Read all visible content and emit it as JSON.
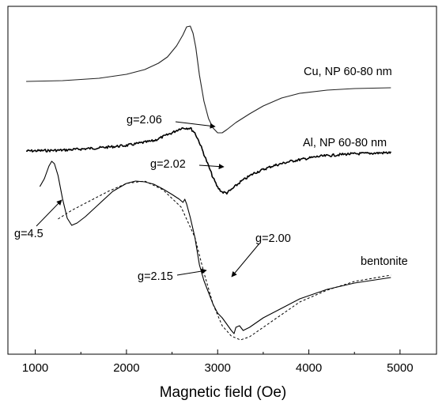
{
  "chart_data": {
    "type": "line",
    "xlabel": "Magnetic field (Oe)",
    "ylabel": "",
    "xlim": [
      700,
      5400
    ],
    "x_ticks": [
      1000,
      2000,
      3000,
      4000,
      5000
    ],
    "y_axis_values_shown": false,
    "grid": false,
    "series": [
      {
        "name": "Cu, NP 60-80 nm",
        "color": "#222222",
        "style": "solid",
        "points": [
          [
            900,
            103
          ],
          [
            1300,
            102
          ],
          [
            1700,
            99
          ],
          [
            2000,
            94
          ],
          [
            2200,
            88
          ],
          [
            2350,
            80
          ],
          [
            2450,
            72
          ],
          [
            2550,
            58
          ],
          [
            2620,
            44
          ],
          [
            2660,
            34
          ],
          [
            2700,
            33
          ],
          [
            2730,
            42
          ],
          [
            2760,
            60
          ],
          [
            2800,
            95
          ],
          [
            2850,
            128
          ],
          [
            2900,
            150
          ],
          [
            2950,
            162
          ],
          [
            3000,
            168
          ],
          [
            3050,
            168
          ],
          [
            3100,
            164
          ],
          [
            3200,
            155
          ],
          [
            3350,
            144
          ],
          [
            3500,
            134
          ],
          [
            3700,
            124
          ],
          [
            3900,
            118
          ],
          [
            4200,
            114
          ],
          [
            4500,
            112
          ],
          [
            4900,
            111
          ]
        ]
      },
      {
        "name": "Al, NP 60-80 nm",
        "color": "#000000",
        "style": "noisy",
        "points": [
          [
            900,
            191
          ],
          [
            1300,
            190
          ],
          [
            1700,
            187
          ],
          [
            2000,
            184
          ],
          [
            2300,
            178
          ],
          [
            2500,
            168
          ],
          [
            2600,
            162
          ],
          [
            2700,
            162
          ],
          [
            2750,
            168
          ],
          [
            2800,
            180
          ],
          [
            2850,
            195
          ],
          [
            2900,
            210
          ],
          [
            2950,
            225
          ],
          [
            3000,
            237
          ],
          [
            3050,
            243
          ],
          [
            3100,
            244
          ],
          [
            3150,
            240
          ],
          [
            3250,
            230
          ],
          [
            3400,
            219
          ],
          [
            3600,
            210
          ],
          [
            3800,
            204
          ],
          [
            4100,
            198
          ],
          [
            4400,
            195
          ],
          [
            4900,
            193
          ]
        ]
      },
      {
        "name": "bentonite",
        "color": "#000000",
        "style": "solid",
        "points": [
          [
            1050,
            236
          ],
          [
            1100,
            226
          ],
          [
            1150,
            210
          ],
          [
            1180,
            204
          ],
          [
            1210,
            207
          ],
          [
            1250,
            222
          ],
          [
            1300,
            252
          ],
          [
            1350,
            276
          ],
          [
            1400,
            285
          ],
          [
            1460,
            282
          ],
          [
            1550,
            274
          ],
          [
            1700,
            258
          ],
          [
            1850,
            242
          ],
          [
            2000,
            232
          ],
          [
            2100,
            229
          ],
          [
            2200,
            230
          ],
          [
            2300,
            233
          ],
          [
            2400,
            239
          ],
          [
            2500,
            246
          ],
          [
            2580,
            252
          ],
          [
            2620,
            256
          ],
          [
            2640,
            252
          ],
          [
            2660,
            258
          ],
          [
            2700,
            275
          ],
          [
            2750,
            300
          ],
          [
            2800,
            335
          ],
          [
            2850,
            355
          ],
          [
            2900,
            370
          ],
          [
            2950,
            385
          ],
          [
            3000,
            396
          ],
          [
            3050,
            402
          ],
          [
            3100,
            410
          ],
          [
            3150,
            418
          ],
          [
            3180,
            422
          ],
          [
            3200,
            414
          ],
          [
            3240,
            412
          ],
          [
            3280,
            418
          ],
          [
            3350,
            414
          ],
          [
            3500,
            402
          ],
          [
            3700,
            390
          ],
          [
            3900,
            378
          ],
          [
            4200,
            366
          ],
          [
            4500,
            358
          ],
          [
            4900,
            351
          ]
        ]
      },
      {
        "name": "bentonite fit",
        "color": "#000000",
        "style": "dashed",
        "points": [
          [
            1250,
            277
          ],
          [
            1400,
            266
          ],
          [
            1600,
            254
          ],
          [
            1800,
            242
          ],
          [
            2000,
            232
          ],
          [
            2200,
            229
          ],
          [
            2400,
            240
          ],
          [
            2600,
            262
          ],
          [
            2750,
            300
          ],
          [
            2850,
            345
          ],
          [
            2950,
            385
          ],
          [
            3050,
            412
          ],
          [
            3150,
            425
          ],
          [
            3250,
            430
          ],
          [
            3350,
            426
          ],
          [
            3500,
            414
          ],
          [
            3700,
            398
          ],
          [
            3900,
            382
          ],
          [
            4200,
            367
          ],
          [
            4500,
            356
          ],
          [
            4900,
            348
          ]
        ]
      }
    ],
    "series_labels": [
      "Cu, NP 60-80 nm",
      "Al, NP 60-80 nm",
      "bentonite"
    ],
    "annotations": [
      {
        "text": "g=2.06"
      },
      {
        "text": "g=2.02"
      },
      {
        "text": "g=4.5"
      },
      {
        "text": "g=2.00"
      },
      {
        "text": "g=2.15"
      }
    ]
  }
}
